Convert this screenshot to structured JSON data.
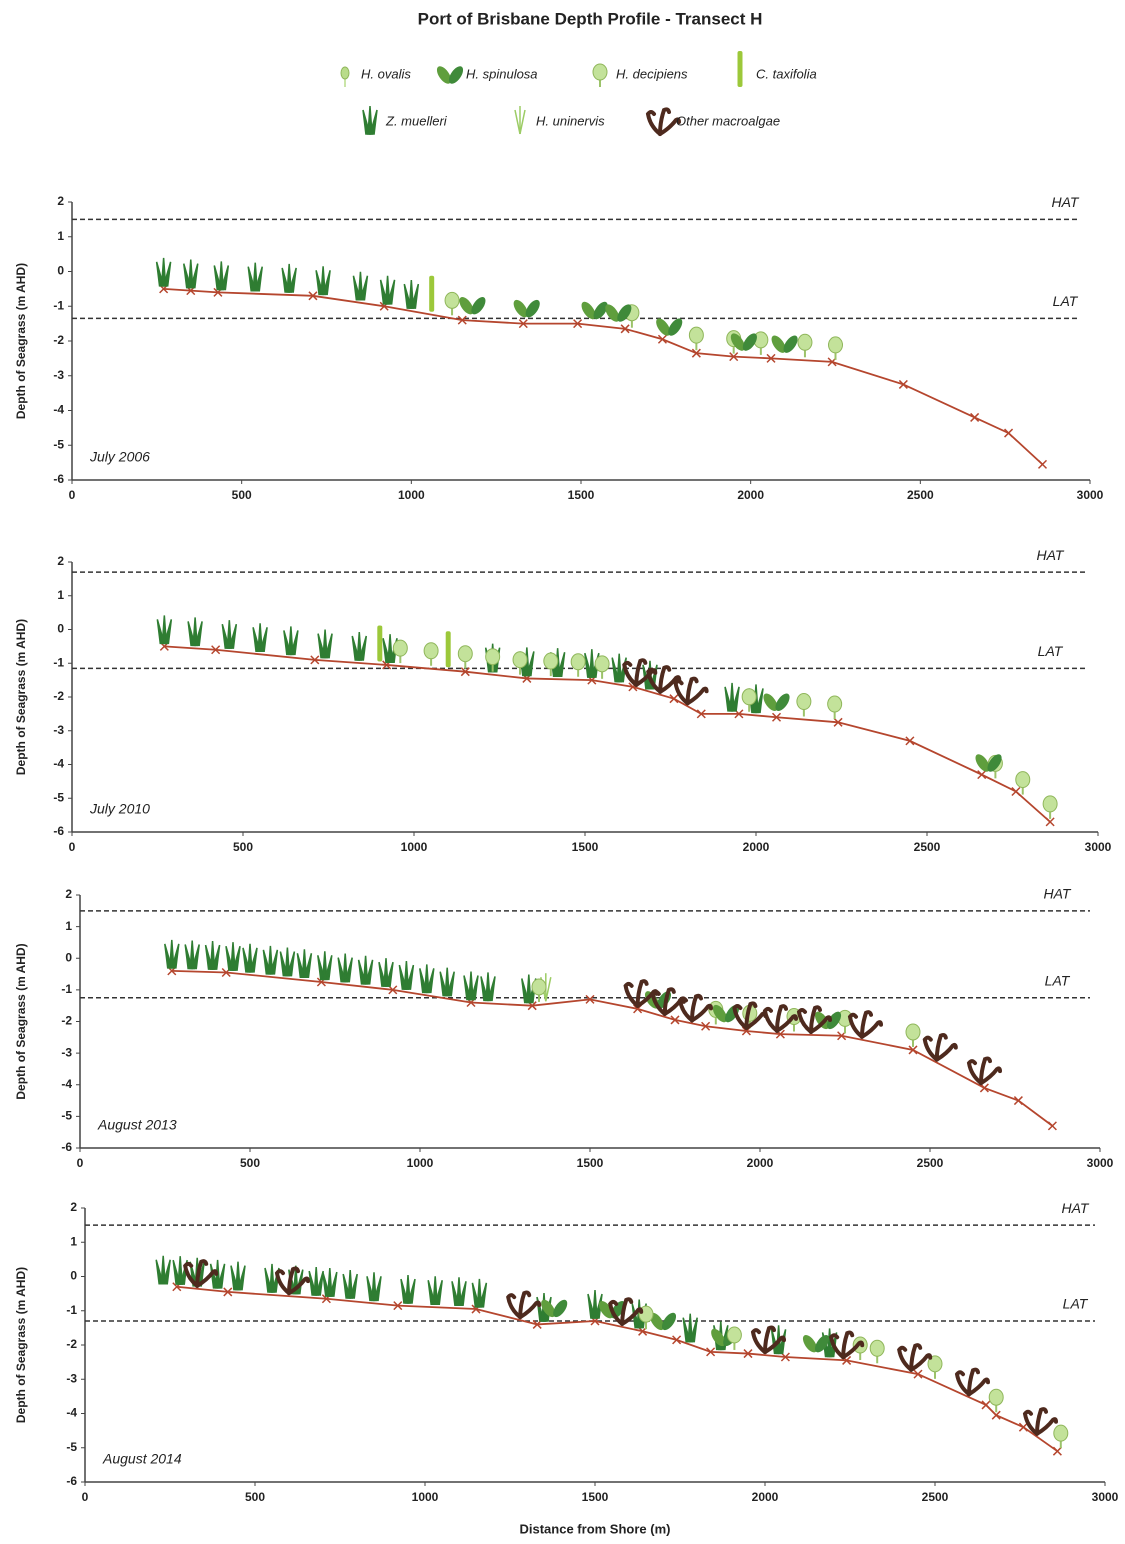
{
  "title": "Port of Brisbane Depth Profile - Transect H",
  "legend": [
    {
      "name": "H. ovalis",
      "color": "#b9dc8a",
      "marker": "oval"
    },
    {
      "name": "H. spinulosa",
      "color": "#5f9e3d",
      "marker": "leaves"
    },
    {
      "name": "H. decipiens",
      "color": "#c3e29a",
      "marker": "bigoval"
    },
    {
      "name": "C. taxifolia",
      "color": "#9cc83a",
      "marker": "tall"
    },
    {
      "name": "Z. muelleri",
      "color": "#2f7d32",
      "marker": "blades"
    },
    {
      "name": "H. uninervis",
      "color": "#9ccc65",
      "marker": "thin"
    },
    {
      "name": "Other macroalgae",
      "color": "#4e2a1e",
      "marker": "curl"
    }
  ],
  "chart_data": [
    {
      "type": "line",
      "annotation": "July 2006",
      "ylabel": "Depth of Seagrass (m AHD)",
      "color": "#b5462e",
      "x": [
        270,
        350,
        430,
        710,
        920,
        1150,
        1330,
        1490,
        1630,
        1740,
        1840,
        1950,
        2060,
        2240,
        2450,
        2660,
        2760,
        2860
      ],
      "values": [
        -0.5,
        -0.55,
        -0.6,
        -0.7,
        -1.0,
        -1.4,
        -1.5,
        -1.5,
        -1.65,
        -1.95,
        -2.35,
        -2.45,
        -2.5,
        -2.6,
        -3.25,
        -4.2,
        -4.65,
        -5.55
      ],
      "xlim": [
        0,
        3000
      ],
      "xticks": [
        0,
        500,
        1000,
        1500,
        2000,
        2500,
        3000
      ],
      "ylim": [
        -6,
        2
      ],
      "yticks": [
        -6,
        -5,
        -4,
        -3,
        -2,
        -1,
        0,
        1,
        2
      ],
      "hlines": [
        {
          "label": "HAT",
          "value": 1.5
        },
        {
          "label": "LAT",
          "value": -1.35
        }
      ],
      "markers": [
        {
          "name": "Z. muelleri",
          "x": [
            270,
            350,
            440,
            540,
            640,
            740,
            850,
            930,
            1000
          ]
        },
        {
          "name": "C. taxifolia",
          "x": [
            1060
          ]
        },
        {
          "name": "H. decipiens",
          "x": [
            1120,
            1650,
            1840,
            1950,
            2030,
            2160,
            2250
          ]
        },
        {
          "name": "H. spinulosa",
          "x": [
            1180,
            1340,
            1540,
            1610,
            1760,
            1980,
            2100
          ]
        }
      ]
    },
    {
      "type": "line",
      "annotation": "July 2010",
      "ylabel": "Depth of Seagrass (m AHD)",
      "color": "#b5462e",
      "x": [
        270,
        420,
        710,
        920,
        1150,
        1330,
        1520,
        1640,
        1760,
        1840,
        1950,
        2060,
        2240,
        2450,
        2660,
        2760,
        2860
      ],
      "values": [
        -0.5,
        -0.6,
        -0.9,
        -1.05,
        -1.25,
        -1.45,
        -1.5,
        -1.7,
        -2.05,
        -2.5,
        -2.5,
        -2.6,
        -2.75,
        -3.3,
        -4.3,
        -4.8,
        -5.7
      ],
      "xlim": [
        0,
        3000
      ],
      "xticks": [
        0,
        500,
        1000,
        1500,
        2000,
        2500,
        3000
      ],
      "ylim": [
        -6,
        2
      ],
      "yticks": [
        -6,
        -5,
        -4,
        -3,
        -2,
        -1,
        0,
        1,
        2
      ],
      "hlines": [
        {
          "label": "HAT",
          "value": 1.7
        },
        {
          "label": "LAT",
          "value": -1.15
        }
      ],
      "markers": [
        {
          "name": "Z. muelleri",
          "x": [
            270,
            360,
            460,
            550,
            640,
            740,
            840,
            930,
            1230,
            1330,
            1420,
            1520,
            1600,
            1690,
            1930,
            2000
          ]
        },
        {
          "name": "C. taxifolia",
          "x": [
            900,
            1100
          ]
        },
        {
          "name": "H. decipiens",
          "x": [
            960,
            1050,
            1150,
            1230,
            1310,
            1400,
            1480,
            1550,
            1980,
            2140,
            2230,
            2700,
            2780,
            2860
          ]
        },
        {
          "name": "H. spinulosa",
          "x": [
            2060,
            2680
          ]
        },
        {
          "name": "Other macroalgae",
          "x": [
            1650,
            1720,
            1800
          ]
        }
      ]
    },
    {
      "type": "line",
      "annotation": "August 2013",
      "ylabel": "Depth of Seagrass (m AHD)",
      "color": "#b5462e",
      "x": [
        270,
        430,
        710,
        920,
        1150,
        1330,
        1500,
        1640,
        1750,
        1840,
        1960,
        2060,
        2240,
        2450,
        2660,
        2760,
        2860
      ],
      "values": [
        -0.4,
        -0.45,
        -0.75,
        -1.0,
        -1.4,
        -1.5,
        -1.3,
        -1.6,
        -1.95,
        -2.15,
        -2.3,
        -2.4,
        -2.45,
        -2.9,
        -4.1,
        -4.5,
        -5.3
      ],
      "xlim": [
        0,
        3000
      ],
      "xticks": [
        0,
        500,
        1000,
        1500,
        2000,
        2500,
        3000
      ],
      "ylim": [
        -6,
        2
      ],
      "yticks": [
        -6,
        -5,
        -4,
        -3,
        -2,
        -1,
        0,
        1,
        2
      ],
      "hlines": [
        {
          "label": "HAT",
          "value": 1.5
        },
        {
          "label": "LAT",
          "value": -1.25
        }
      ],
      "markers": [
        {
          "name": "Z. muelleri",
          "x": [
            270,
            330,
            390,
            450,
            500,
            560,
            610,
            660,
            720,
            780,
            840,
            900,
            960,
            1020,
            1080,
            1150,
            1200,
            1320
          ]
        },
        {
          "name": "H. uninervis",
          "x": [
            1370
          ]
        },
        {
          "name": "H. decipiens",
          "x": [
            1350,
            1870,
            1970,
            2100,
            2250,
            2450
          ]
        },
        {
          "name": "H. spinulosa",
          "x": [
            1700,
            1900,
            2200
          ]
        },
        {
          "name": "Other macroalgae",
          "x": [
            1640,
            1720,
            1800,
            1960,
            2050,
            2150,
            2300,
            2520,
            2650
          ]
        }
      ]
    },
    {
      "type": "line",
      "annotation": "August 2014",
      "ylabel": "Depth of Seagrass (m AHD)",
      "xlabel": "Distance from Shore (m)",
      "color": "#b5462e",
      "x": [
        270,
        420,
        710,
        920,
        1150,
        1330,
        1500,
        1640,
        1740,
        1840,
        1950,
        2060,
        2240,
        2450,
        2650,
        2680,
        2760,
        2860
      ],
      "values": [
        -0.3,
        -0.45,
        -0.65,
        -0.85,
        -0.95,
        -1.4,
        -1.3,
        -1.6,
        -1.85,
        -2.2,
        -2.25,
        -2.35,
        -2.45,
        -2.85,
        -3.75,
        -4.05,
        -4.4,
        -5.1
      ],
      "xlim": [
        0,
        3000
      ],
      "xticks": [
        0,
        500,
        1000,
        1500,
        2000,
        2500,
        3000
      ],
      "ylim": [
        -6,
        2
      ],
      "yticks": [
        -6,
        -5,
        -4,
        -3,
        -2,
        -1,
        0,
        1,
        2
      ],
      "hlines": [
        {
          "label": "HAT",
          "value": 1.5
        },
        {
          "label": "LAT",
          "value": -1.3
        }
      ],
      "markers": [
        {
          "name": "Z. muelleri",
          "x": [
            230,
            280,
            330,
            390,
            450,
            550,
            620,
            680,
            720,
            780,
            850,
            950,
            1030,
            1100,
            1160,
            1350,
            1500,
            1630,
            1780,
            1870,
            2040,
            2190
          ]
        },
        {
          "name": "H. spinulosa",
          "x": [
            1380,
            1550,
            1700,
            1880,
            2150
          ]
        },
        {
          "name": "H. decipiens",
          "x": [
            1650,
            1910,
            2280,
            2330,
            2500,
            2680,
            2870
          ]
        },
        {
          "name": "Other macroalgae",
          "x": [
            330,
            600,
            1280,
            1580,
            2000,
            2230,
            2430,
            2600,
            2800
          ]
        }
      ]
    }
  ]
}
